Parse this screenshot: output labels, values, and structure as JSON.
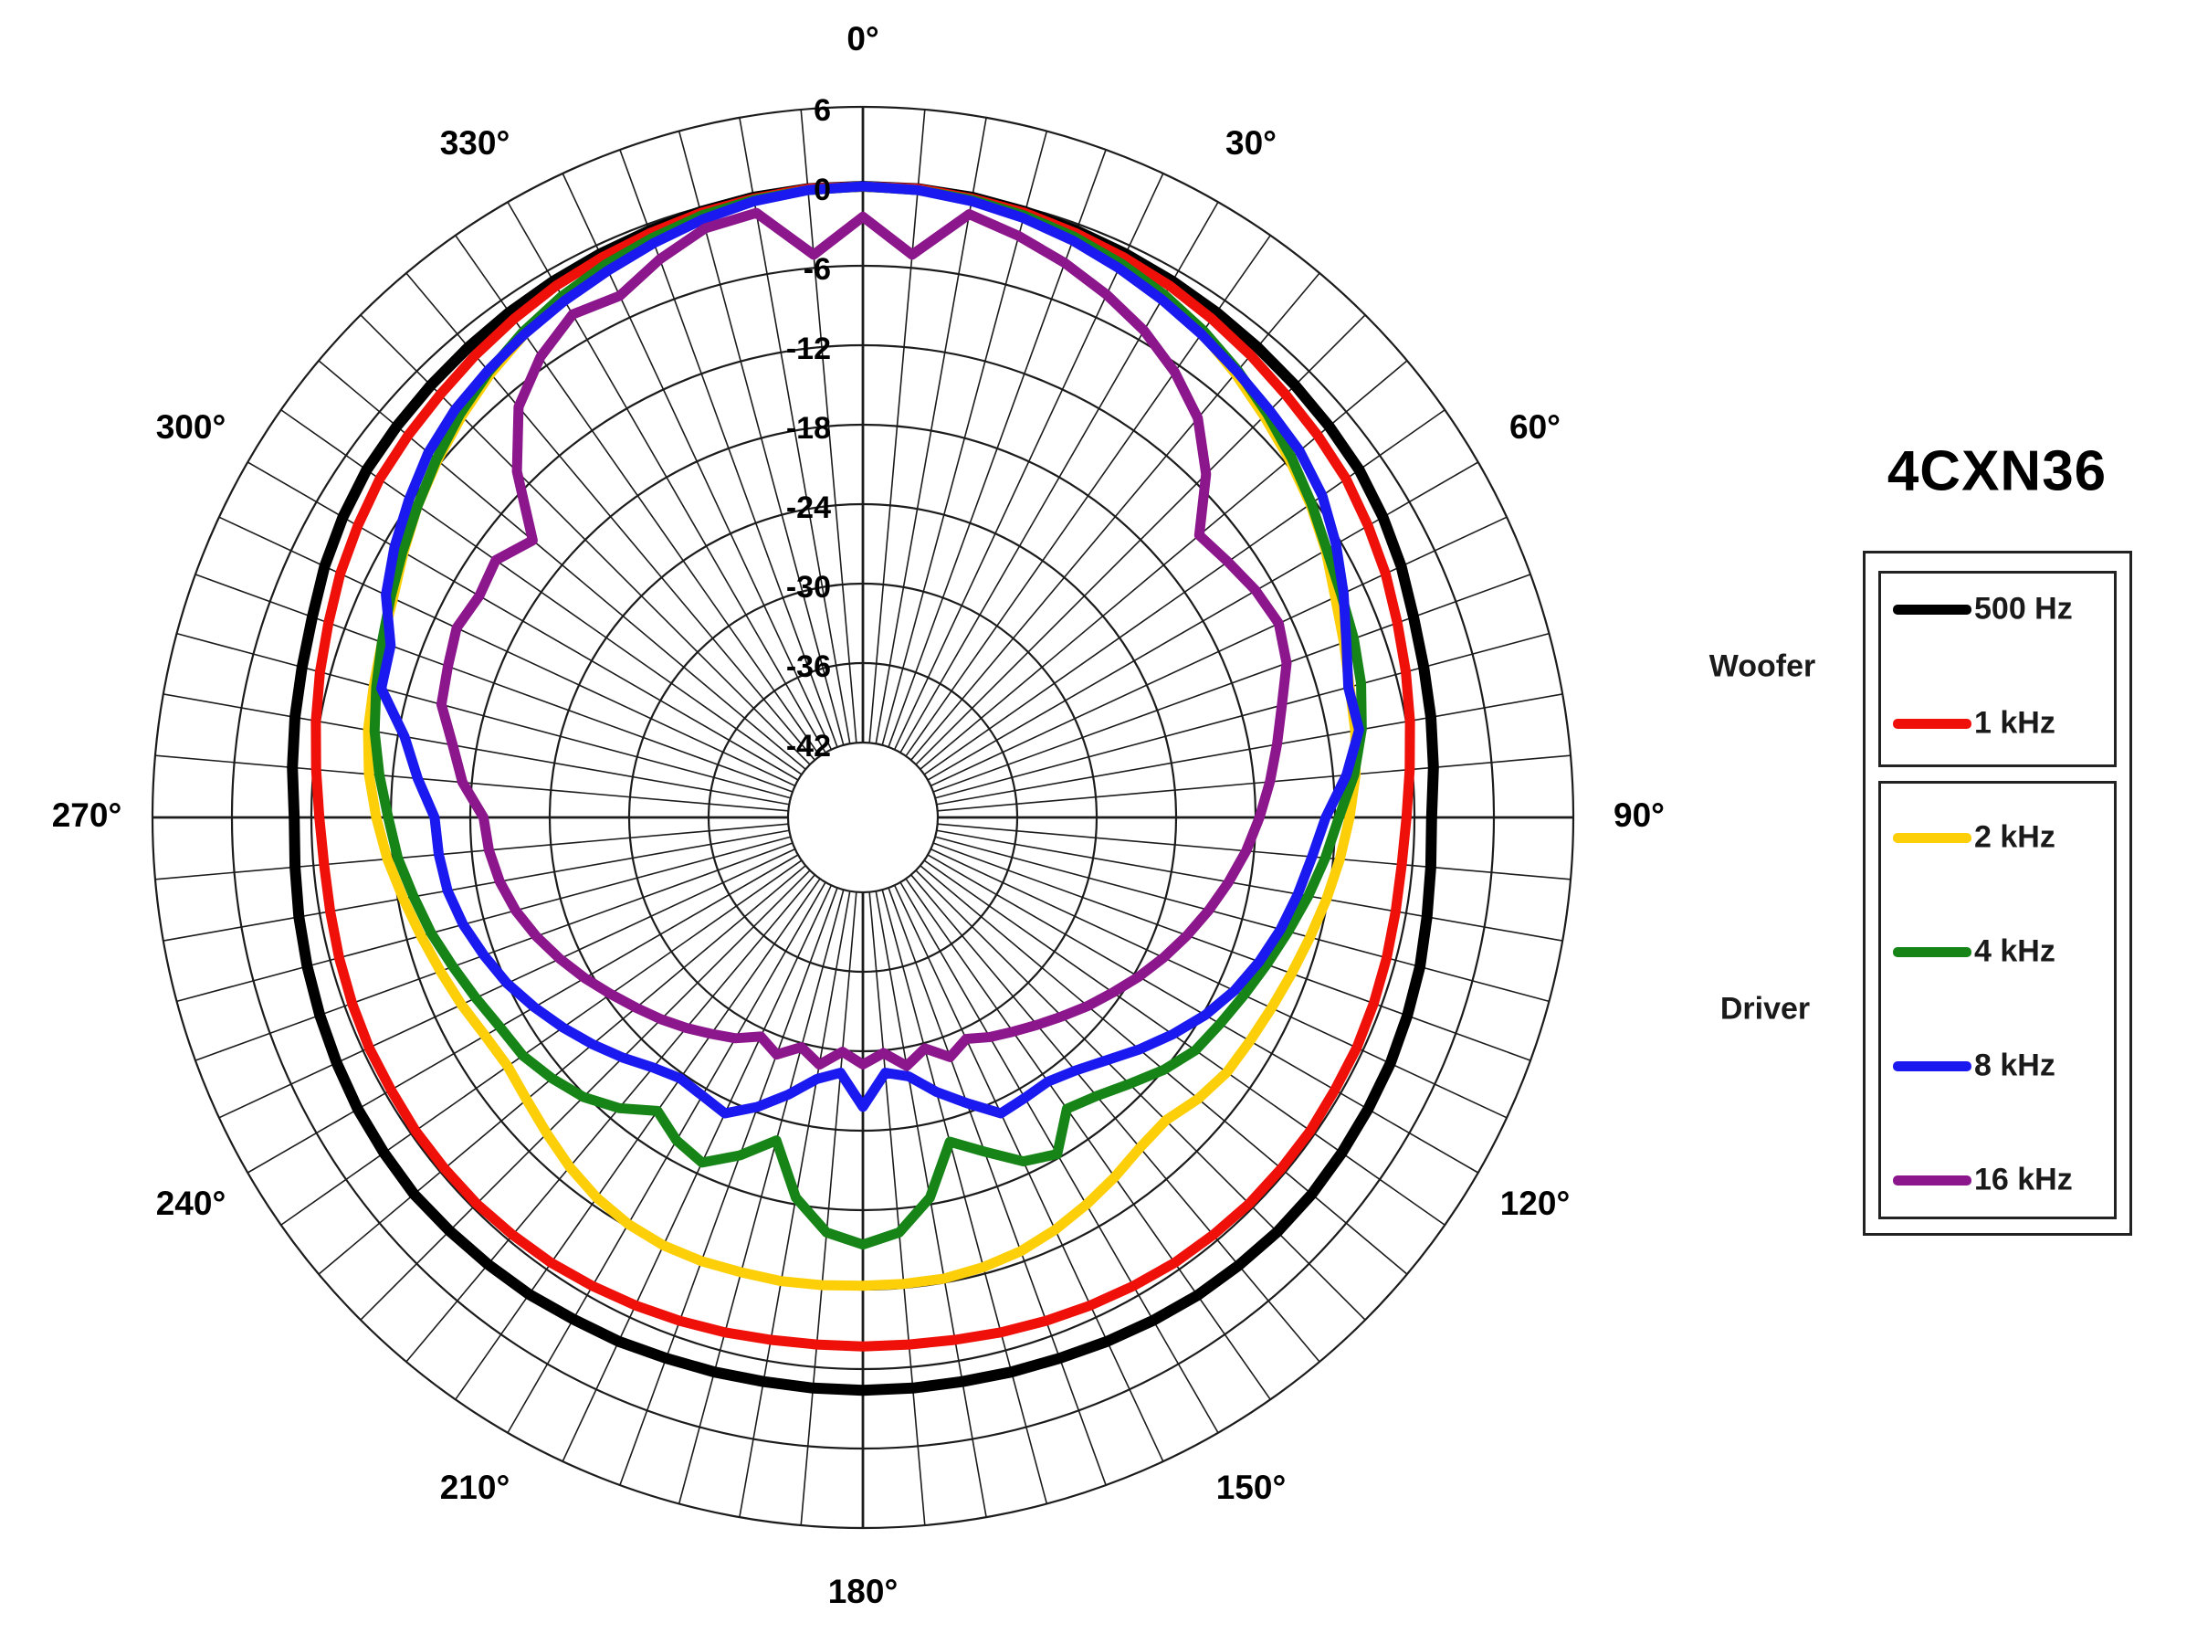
{
  "title": "4CXN36",
  "legend": {
    "groups": [
      {
        "name": "Woofer",
        "entries": [
          {
            "label": "500 Hz",
            "color": "#000000"
          },
          {
            "label": "1 kHz",
            "color": "#ee1009"
          }
        ]
      },
      {
        "name": "Driver",
        "entries": [
          {
            "label": "2 kHz",
            "color": "#fdcf08"
          },
          {
            "label": "4 kHz",
            "color": "#168416"
          },
          {
            "label": "8 kHz",
            "color": "#1a1af0"
          },
          {
            "label": "16 kHz",
            "color": "#8c168c"
          }
        ]
      }
    ]
  },
  "polar_axis": {
    "angle_labels": [
      {
        "deg": 0,
        "label": "0°"
      },
      {
        "deg": 30,
        "label": "30°"
      },
      {
        "deg": 60,
        "label": "60°"
      },
      {
        "deg": 90,
        "label": "90°"
      },
      {
        "deg": 120,
        "label": "120°"
      },
      {
        "deg": 150,
        "label": "150°"
      },
      {
        "deg": 180,
        "label": "180°"
      },
      {
        "deg": 210,
        "label": "210°"
      },
      {
        "deg": 240,
        "label": "240°"
      },
      {
        "deg": 270,
        "label": "270°"
      },
      {
        "deg": 300,
        "label": "300°"
      },
      {
        "deg": 330,
        "label": "330°"
      }
    ],
    "radial_tick_labels": [
      {
        "db": 6,
        "label": "6"
      },
      {
        "db": 0,
        "label": "0"
      },
      {
        "db": -6,
        "label": "-6"
      },
      {
        "db": -12,
        "label": "-12"
      },
      {
        "db": -18,
        "label": "-18"
      },
      {
        "db": -24,
        "label": "-24"
      },
      {
        "db": -30,
        "label": "-30"
      },
      {
        "db": -36,
        "label": "-36"
      },
      {
        "db": -42,
        "label": "-42"
      }
    ],
    "db_max": 6,
    "db_min": -42,
    "ring_step_db": 6,
    "spoke_step_deg": 5
  },
  "chart_data": {
    "type": "line",
    "subtype": "polar-directivity",
    "title": "4CXN36",
    "units": "dB",
    "rlim": [
      -42,
      6
    ],
    "angle_start_deg": 0,
    "angle_step_deg": 5,
    "grid": true,
    "legend_position": "right",
    "series": [
      {
        "name": "500 Hz",
        "group": "Woofer",
        "color": "#000000",
        "values": [
          0,
          0,
          -0.1,
          -0.3,
          -0.5,
          -0.7,
          -0.9,
          -1.1,
          -1.3,
          -1.5,
          -1.7,
          -1.9,
          -2.3,
          -2.8,
          -3.4,
          -3.8,
          -4.1,
          -4.4,
          -4.7,
          -4.6,
          -4.4,
          -4.1,
          -3.9,
          -3.7,
          -3.6,
          -3.5,
          -3.4,
          -3.4,
          -3.5,
          -3.6,
          -3.8,
          -4.0,
          -4.2,
          -4.3,
          -4.4,
          -4.4,
          -4.4,
          -4.4,
          -4.4,
          -4.3,
          -4.2,
          -4.0,
          -3.9,
          -3.7,
          -3.6,
          -3.5,
          -3.4,
          -3.5,
          -3.6,
          -3.8,
          -4.0,
          -4.2,
          -4.4,
          -4.6,
          -4.7,
          -4.4,
          -4.1,
          -3.8,
          -3.4,
          -2.8,
          -2.3,
          -1.9,
          -1.7,
          -1.5,
          -1.3,
          -1.1,
          -0.9,
          -0.7,
          -0.5,
          -0.3,
          -0.1,
          0
        ]
      },
      {
        "name": "1 kHz",
        "group": "Woofer",
        "color": "#ee1009",
        "values": [
          0,
          0,
          -0.2,
          -0.4,
          -0.7,
          -1.0,
          -1.3,
          -1.7,
          -2.1,
          -2.5,
          -2.8,
          -3.1,
          -3.6,
          -4.1,
          -4.7,
          -5.2,
          -5.7,
          -6.2,
          -6.6,
          -6.8,
          -6.8,
          -6.7,
          -6.6,
          -6.5,
          -6.5,
          -6.4,
          -6.4,
          -6.4,
          -6.5,
          -6.6,
          -6.8,
          -7.0,
          -7.2,
          -7.4,
          -7.6,
          -7.7,
          -7.7,
          -7.7,
          -7.6,
          -7.4,
          -7.2,
          -7.0,
          -6.8,
          -6.6,
          -6.5,
          -6.4,
          -6.4,
          -6.4,
          -6.5,
          -6.5,
          -6.6,
          -6.7,
          -6.8,
          -6.8,
          -6.6,
          -6.2,
          -5.7,
          -5.2,
          -4.7,
          -4.1,
          -3.6,
          -3.1,
          -2.8,
          -2.5,
          -2.1,
          -1.7,
          -1.3,
          -1.0,
          -0.7,
          -0.4,
          -0.2,
          0
        ]
      },
      {
        "name": "2 kHz",
        "group": "Driver",
        "color": "#fdcf08",
        "values": [
          0,
          -0.1,
          -0.3,
          -0.7,
          -1.1,
          -1.7,
          -2.3,
          -3.0,
          -3.9,
          -4.8,
          -5.6,
          -6.4,
          -7.3,
          -8.3,
          -9.0,
          -9.6,
          -9.9,
          -10.3,
          -10.9,
          -11.5,
          -12.1,
          -12.7,
          -13.2,
          -13.6,
          -13.9,
          -14.1,
          -14.6,
          -15.3,
          -15.1,
          -14.5,
          -13.9,
          -13.3,
          -12.8,
          -12.5,
          -12.3,
          -12.3,
          -12.3,
          -12.2,
          -12.1,
          -12.1,
          -12.0,
          -12.0,
          -12.2,
          -12.6,
          -13.2,
          -13.9,
          -14.5,
          -14.9,
          -14.7,
          -14.2,
          -13.7,
          -13.1,
          -12.4,
          -11.6,
          -10.9,
          -10.2,
          -9.7,
          -9.4,
          -9.0,
          -8.5,
          -7.6,
          -6.6,
          -5.7,
          -4.8,
          -3.9,
          -3.1,
          -2.4,
          -1.8,
          -1.2,
          -0.7,
          -0.3,
          -0.1
        ]
      },
      {
        "name": "4 kHz",
        "group": "Driver",
        "color": "#168416",
        "values": [
          0,
          -0.1,
          -0.3,
          -0.6,
          -1.0,
          -1.5,
          -2.1,
          -2.8,
          -3.6,
          -4.5,
          -5.4,
          -6.3,
          -7.2,
          -7.8,
          -8.2,
          -8.7,
          -9.4,
          -10.4,
          -11.7,
          -12.6,
          -13.5,
          -14.4,
          -15.2,
          -15.9,
          -16.5,
          -17.0,
          -18.0,
          -19.2,
          -20.2,
          -20.8,
          -18.3,
          -19.0,
          -20.8,
          -22.3,
          -18.5,
          -16.2,
          -15.4,
          -16.2,
          -18.5,
          -22.4,
          -20.5,
          -18.9,
          -19.5,
          -20.6,
          -19.0,
          -17.8,
          -17.0,
          -16.3,
          -16.0,
          -15.4,
          -14.7,
          -13.9,
          -13.2,
          -12.4,
          -11.8,
          -11.0,
          -10.2,
          -9.6,
          -9.0,
          -8.3,
          -7.5,
          -6.6,
          -5.6,
          -4.6,
          -3.7,
          -2.9,
          -2.2,
          -1.6,
          -1.1,
          -0.6,
          -0.3,
          -0.1
        ]
      },
      {
        "name": "8 kHz",
        "group": "Driver",
        "color": "#1a1af0",
        "values": [
          0,
          -0.1,
          -0.4,
          -0.8,
          -1.3,
          -1.9,
          -2.5,
          -3.1,
          -3.7,
          -4.2,
          -4.6,
          -5.3,
          -6.4,
          -7.6,
          -8.8,
          -9.7,
          -9.6,
          -11.0,
          -12.7,
          -13.6,
          -14.3,
          -15.0,
          -15.8,
          -16.7,
          -17.8,
          -19.1,
          -20.4,
          -21.7,
          -22.7,
          -23.3,
          -23.2,
          -23.0,
          -24.7,
          -26.2,
          -27.8,
          -28.3,
          -25.8,
          -28.3,
          -27.6,
          -26.0,
          -24.4,
          -23.0,
          -23.4,
          -23.6,
          -23.0,
          -22.0,
          -21.0,
          -20.0,
          -19.0,
          -18.0,
          -17.2,
          -16.4,
          -15.8,
          -15.5,
          -15.3,
          -13.9,
          -12.5,
          -10.0,
          -9.7,
          -7.9,
          -6.8,
          -5.8,
          -4.8,
          -4.1,
          -3.6,
          -3.1,
          -2.6,
          -2.1,
          -1.5,
          -0.9,
          -0.4,
          -0.1
        ]
      },
      {
        "name": "16 kHz",
        "group": "Driver",
        "color": "#8c168c",
        "values": [
          -2.3,
          -5.0,
          -1.4,
          -2.2,
          -3.1,
          -4.1,
          -5.2,
          -6.6,
          -8.3,
          -11.0,
          -14.5,
          -14.0,
          -13.4,
          -13.0,
          -13.6,
          -14.9,
          -15.9,
          -16.8,
          -17.7,
          -18.6,
          -19.6,
          -20.6,
          -21.6,
          -22.6,
          -23.6,
          -24.6,
          -25.5,
          -26.4,
          -27.2,
          -27.9,
          -28.5,
          -29.2,
          -28.4,
          -29.6,
          -28.6,
          -29.8,
          -29.0,
          -29.9,
          -28.7,
          -29.7,
          -28.6,
          -29.4,
          -28.4,
          -27.7,
          -26.9,
          -26.1,
          -25.3,
          -24.4,
          -23.4,
          -22.4,
          -21.4,
          -20.5,
          -19.8,
          -19.3,
          -19.0,
          -17.3,
          -16.2,
          -14.7,
          -14.3,
          -13.8,
          -14.2,
          -13.8,
          -15.1,
          -10.7,
          -7.2,
          -5.2,
          -3.8,
          -4.2,
          -2.8,
          -1.6,
          -1.3,
          -5.0
        ]
      }
    ]
  }
}
